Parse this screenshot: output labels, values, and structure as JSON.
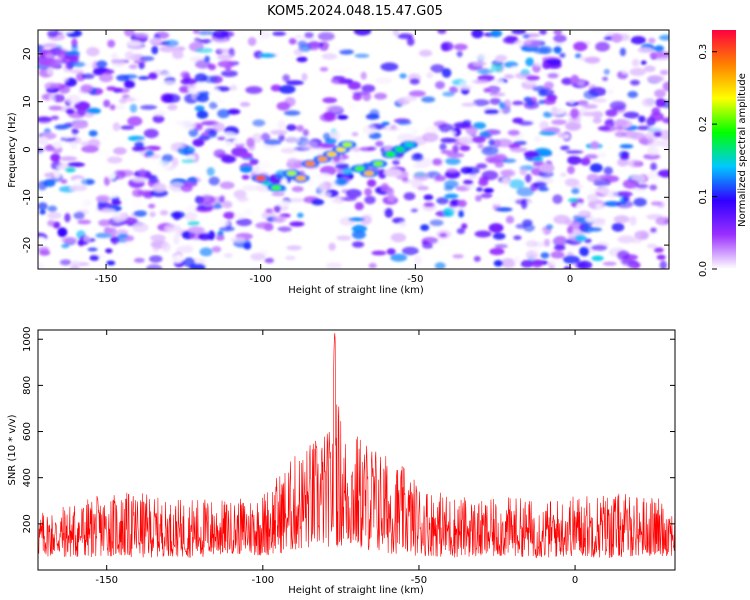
{
  "title": "KOM5.2024.048.15.47.G05",
  "chart_data": [
    {
      "type": "heatmap",
      "xlabel": "Height of straight line (km)",
      "ylabel": "Frequency (Hz)",
      "xlim": [
        -172,
        32
      ],
      "ylim": [
        -25,
        25
      ],
      "xticks": [
        -150,
        -100,
        -50,
        0
      ],
      "xtick_labels": [
        "-150",
        "-100",
        "-50",
        "0"
      ],
      "yticks": [
        -20,
        -10,
        0,
        10,
        20
      ],
      "ytick_labels": [
        "-20",
        "-10",
        "0",
        "10",
        "20"
      ],
      "colorbar": {
        "label": "Normalized spectral amplitude",
        "range": [
          0.0,
          0.33
        ],
        "ticks": [
          0.0,
          0.1,
          0.2,
          0.3
        ],
        "tick_labels": [
          "0.0",
          "0.1",
          "0.2",
          "0.3"
        ],
        "colormap": [
          "#ffffff",
          "#9b30ff",
          "#3000ff",
          "#00c8ff",
          "#00ff00",
          "#ffff00",
          "#ff8000",
          "#ff0040"
        ]
      },
      "signal_trace": [
        {
          "x": -100,
          "y": -6,
          "amp": 0.3
        },
        {
          "x": -95,
          "y": -8,
          "amp": 0.2
        },
        {
          "x": -90,
          "y": -5,
          "amp": 0.22
        },
        {
          "x": -87,
          "y": -6,
          "amp": 0.26
        },
        {
          "x": -84,
          "y": -3,
          "amp": 0.28
        },
        {
          "x": -80,
          "y": -2,
          "amp": 0.27
        },
        {
          "x": -77,
          "y": -1,
          "amp": 0.25
        },
        {
          "x": -74,
          "y": 0,
          "amp": 0.24
        },
        {
          "x": -72,
          "y": 1,
          "amp": 0.22
        },
        {
          "x": -68,
          "y": -4,
          "amp": 0.2
        },
        {
          "x": -65,
          "y": -5,
          "amp": 0.26
        },
        {
          "x": -62,
          "y": -3,
          "amp": 0.21
        },
        {
          "x": -58,
          "y": -1,
          "amp": 0.19
        },
        {
          "x": -55,
          "y": 0,
          "amp": 0.17
        },
        {
          "x": -52,
          "y": 1,
          "amp": 0.15
        }
      ]
    },
    {
      "type": "line",
      "xlabel": "Height of straight line (km)",
      "ylabel": "SNR (10 * v/v)",
      "xlim": [
        -172,
        32
      ],
      "ylim": [
        0,
        1040
      ],
      "xticks": [
        -150,
        -100,
        -50,
        0
      ],
      "xtick_labels": [
        "-150",
        "-100",
        "-50",
        "0"
      ],
      "yticks": [
        200,
        400,
        600,
        800,
        1000
      ],
      "ytick_labels": [
        "200",
        "400",
        "600",
        "800",
        "1000"
      ],
      "line_color": "#ff0000",
      "series_envelope": {
        "x": [
          -172,
          -160,
          -150,
          -140,
          -130,
          -120,
          -110,
          -100,
          -95,
          -90,
          -85,
          -80,
          -78,
          -77,
          -76,
          -74,
          -70,
          -65,
          -60,
          -55,
          -50,
          -45,
          -40,
          -35,
          -30,
          -20,
          -10,
          0,
          10,
          20,
          32
        ],
        "y_high": [
          250,
          300,
          330,
          340,
          300,
          320,
          300,
          340,
          420,
          500,
          560,
          600,
          620,
          1040,
          750,
          610,
          600,
          560,
          500,
          450,
          380,
          350,
          330,
          320,
          300,
          320,
          300,
          330,
          340,
          330,
          300
        ],
        "y_low": [
          60,
          50,
          60,
          50,
          60,
          50,
          70,
          60,
          70,
          80,
          90,
          100,
          100,
          100,
          100,
          100,
          90,
          80,
          70,
          70,
          60,
          60,
          50,
          60,
          50,
          60,
          50,
          60,
          50,
          60,
          60
        ]
      }
    }
  ]
}
